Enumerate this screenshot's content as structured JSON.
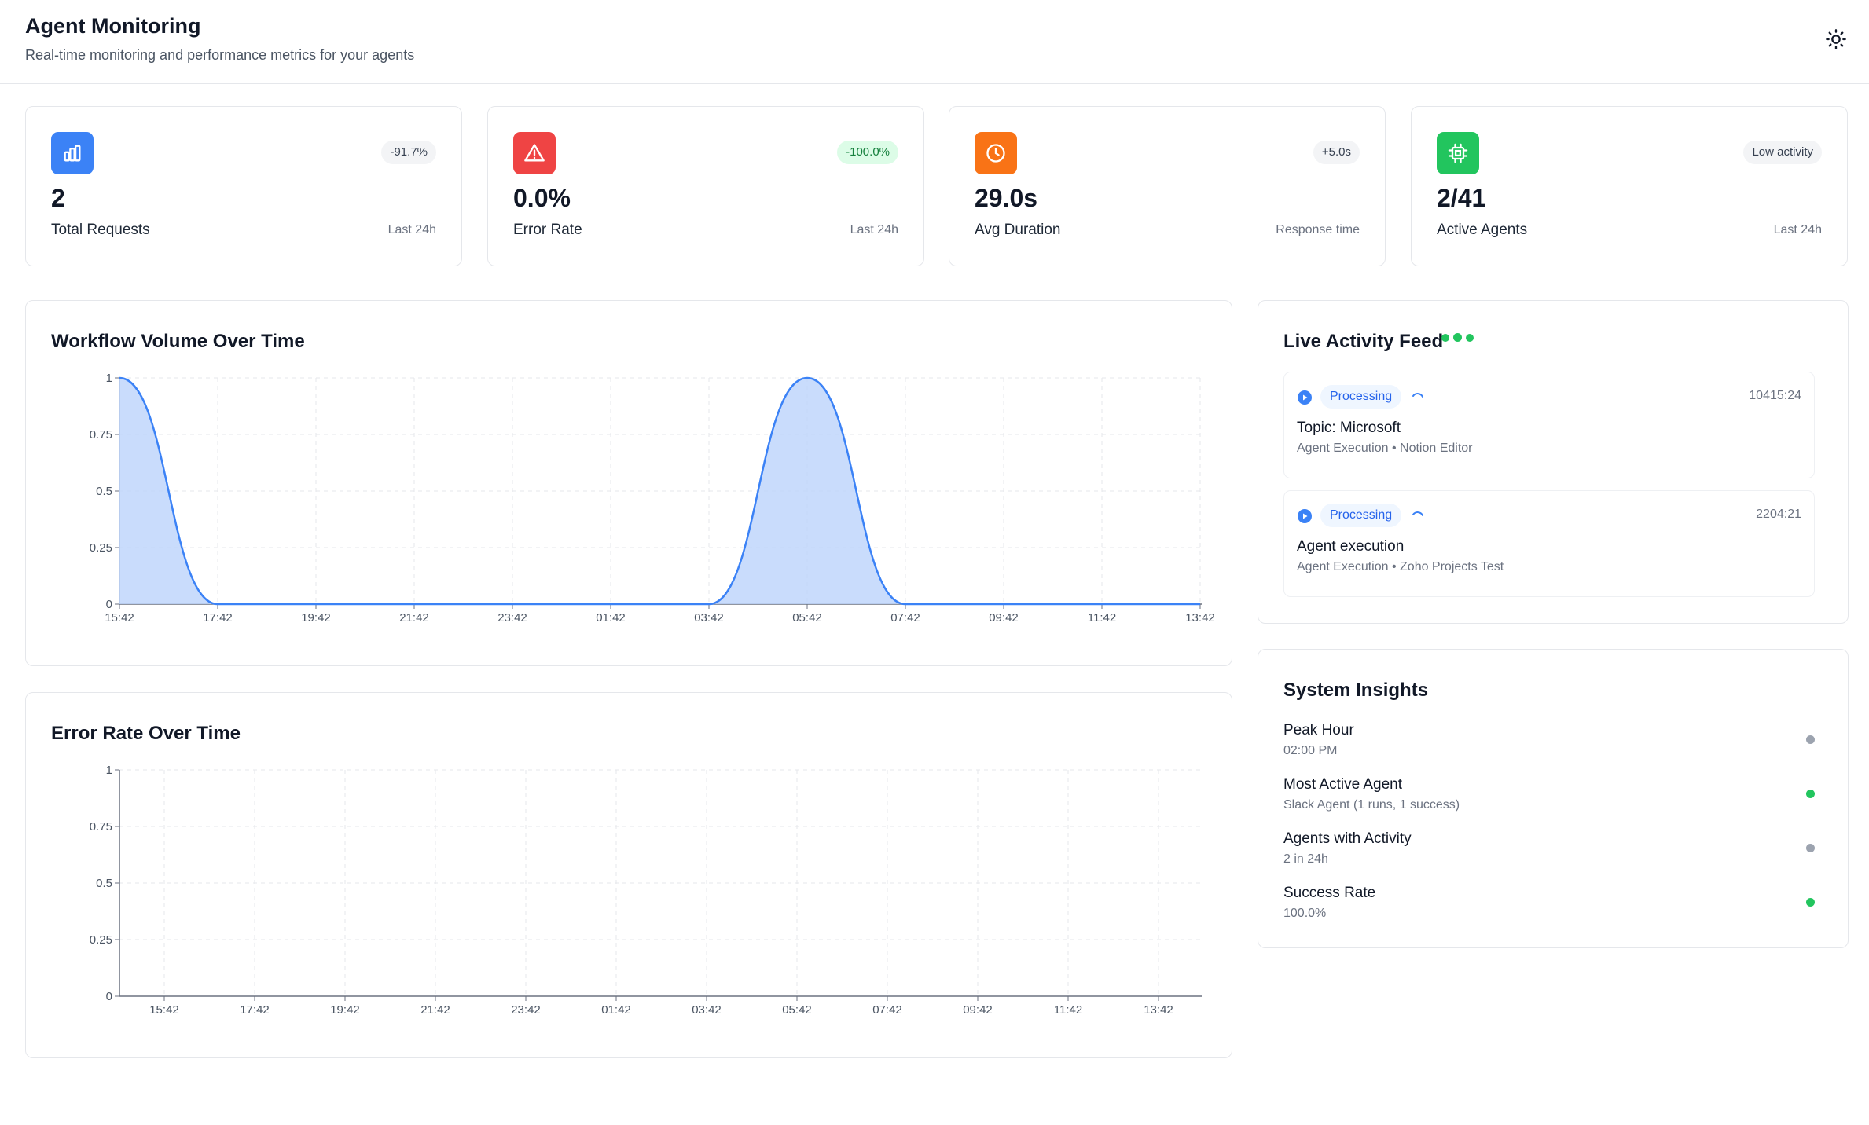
{
  "header": {
    "title": "Agent Monitoring",
    "subtitle": "Real-time monitoring and performance metrics for your agents"
  },
  "stats": [
    {
      "icon": "bar-chart-icon",
      "color": "#3b82f6",
      "badge": "-91.7%",
      "value": "2",
      "label": "Total Requests",
      "sub": "Last 24h"
    },
    {
      "icon": "alert-triangle-icon",
      "color": "#ef4444",
      "badge": "-100.0%",
      "value": "0.0%",
      "label": "Error Rate",
      "sub": "Last 24h"
    },
    {
      "icon": "clock-icon",
      "color": "#f97316",
      "badge": "+5.0s",
      "value": "29.0s",
      "label": "Avg Duration",
      "sub": "Response time"
    },
    {
      "icon": "cpu-icon",
      "color": "#22c55e",
      "badge": "Low activity",
      "value": "2/41",
      "label": "Active Agents",
      "sub": "Last 24h"
    }
  ],
  "workflow_chart": {
    "title": "Workflow Volume Over Time"
  },
  "error_chart": {
    "title": "Error Rate Over Time"
  },
  "live_feed": {
    "title": "Live Activity Feed",
    "items": [
      {
        "status": "Processing",
        "time": "10415:24",
        "title": "Topic: Microsoft",
        "sub": "Agent Execution • Notion Editor"
      },
      {
        "status": "Processing",
        "time": "2204:21",
        "title": "Agent execution",
        "sub": "Agent Execution • Zoho Projects Test"
      }
    ]
  },
  "insights": {
    "title": "System Insights",
    "items": [
      {
        "title": "Peak Hour",
        "sub": "02:00 PM",
        "dot_color": "#9ca3af"
      },
      {
        "title": "Most Active Agent",
        "sub": "Slack Agent (1 runs, 1 success)",
        "dot_color": "#22c55e"
      },
      {
        "title": "Agents with Activity",
        "sub": "2 in 24h",
        "dot_color": "#9ca3af"
      },
      {
        "title": "Success Rate",
        "sub": "100.0%",
        "dot_color": "#22c55e"
      }
    ]
  },
  "chart_data": [
    {
      "type": "area",
      "title": "Workflow Volume Over Time",
      "x": [
        "15:42",
        "17:42",
        "19:42",
        "21:42",
        "23:42",
        "01:42",
        "03:42",
        "05:42",
        "07:42",
        "09:42",
        "11:42",
        "13:42"
      ],
      "series": [
        {
          "values": [
            1,
            0,
            0,
            0,
            0,
            0,
            0,
            1,
            0,
            0,
            0,
            0
          ]
        }
      ],
      "ylim": [
        0,
        1
      ],
      "yticks": [
        "0",
        "0.25",
        "0.5",
        "0.75",
        "1"
      ],
      "grid": true,
      "color": "#3b82f6"
    },
    {
      "type": "line",
      "title": "Error Rate Over Time",
      "x": [
        "15:42",
        "17:42",
        "19:42",
        "21:42",
        "23:42",
        "01:42",
        "03:42",
        "05:42",
        "07:42",
        "09:42",
        "11:42",
        "13:42"
      ],
      "series": [],
      "ylim": [
        0,
        1
      ],
      "yticks": [
        "0",
        "0.25",
        "0.5",
        "0.75",
        "1"
      ],
      "grid": true
    }
  ]
}
